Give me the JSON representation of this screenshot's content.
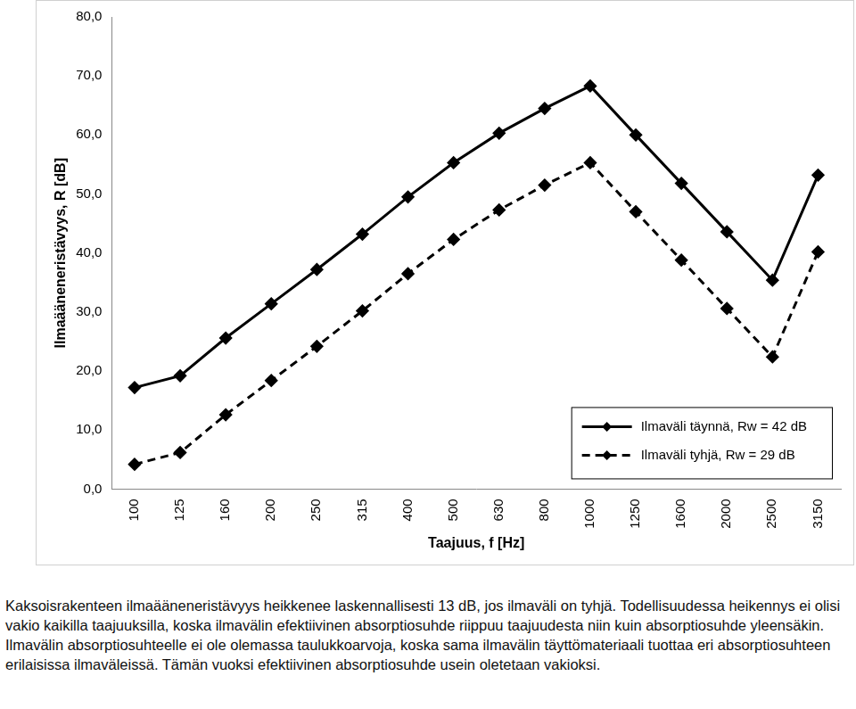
{
  "chart_data": {
    "type": "line",
    "x_label": "Taajuus, f [Hz]",
    "y_label": "Ilmaääneneristävyys, R [dB]",
    "categories": [
      "100",
      "125",
      "160",
      "200",
      "250",
      "315",
      "400",
      "500",
      "630",
      "800",
      "1000",
      "1250",
      "1600",
      "2000",
      "2500",
      "3150"
    ],
    "series": [
      {
        "name": "Ilmaväli täynnä, Rw = 42 dB",
        "color": "#000000",
        "marker": "diamond",
        "line_style": "solid",
        "values": [
          17.2,
          19.2,
          25.6,
          31.4,
          37.2,
          43.2,
          49.5,
          55.3,
          60.3,
          64.5,
          68.3,
          60.0,
          51.8,
          43.6,
          35.4,
          53.2
        ]
      },
      {
        "name": "Ilmaväli tyhjä, Rw = 29 dB",
        "color": "#000000",
        "marker": "diamond",
        "line_style": "dashed",
        "values": [
          4.2,
          6.2,
          12.6,
          18.4,
          24.2,
          30.2,
          36.5,
          42.3,
          47.3,
          51.5,
          55.3,
          47.0,
          38.8,
          30.6,
          22.4,
          40.2
        ]
      }
    ],
    "ylim": [
      0,
      80
    ],
    "yticks": [
      {
        "value": 0,
        "label": "0,0"
      },
      {
        "value": 10,
        "label": "10,0"
      },
      {
        "value": 20,
        "label": "20,0"
      },
      {
        "value": 30,
        "label": "30,0"
      },
      {
        "value": 40,
        "label": "40,0"
      },
      {
        "value": 50,
        "label": "50,0"
      },
      {
        "value": 60,
        "label": "60,0"
      },
      {
        "value": 70,
        "label": "70,0"
      },
      {
        "value": 80,
        "label": "80,0"
      }
    ],
    "grid": false,
    "legend": "lower right",
    "caption": "Kaksoisrakenteen ilmaääneneristävyys heikkenee laskennallisesti 13 dB, jos ilmaväli on tyhjä. Todellisuudessa heikennys ei olisi vakio kaikilla taajuuksilla, koska ilmavälin efektiivinen absorptiosuhde riippuu taajuudesta niin kuin absorptiosuhde yleensäkin. Ilmavälin absorptiosuhteelle ei ole olemassa taulukkoarvoja, koska sama ilmavälin täyttömateriaali tuottaa eri absorptiosuhteen erilaisissa ilmaväleissä. Tämän vuoksi efektiivinen absorptiosuhde usein oletetaan vakioksi."
  }
}
